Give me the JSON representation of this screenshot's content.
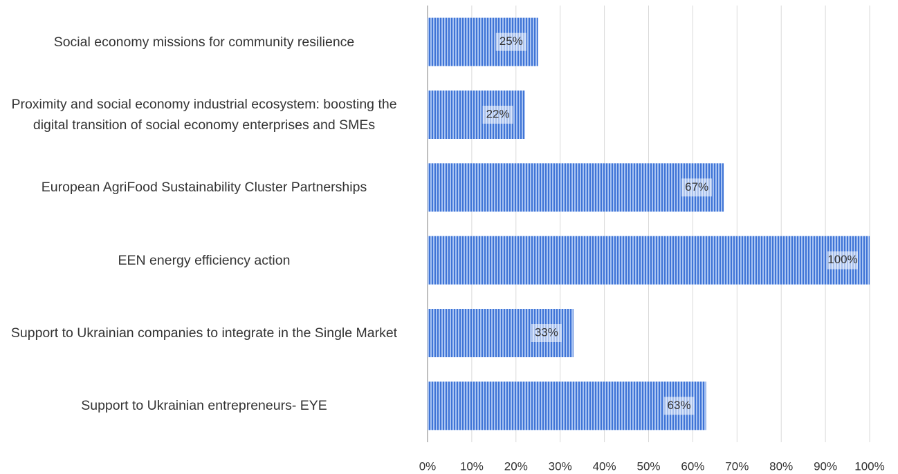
{
  "chart_data": {
    "type": "bar",
    "orientation": "horizontal",
    "categories": [
      "Social economy missions for community resilience",
      "Proximity and social economy industrial ecosystem: boosting the digital transition of social economy enterprises and SMEs",
      "European AgriFood Sustainability Cluster Partnerships",
      "EEN energy efficiency action",
      "Support to Ukrainian companies to integrate in the Single Market",
      "Support to Ukrainian entrepreneurs- EYE"
    ],
    "values": [
      25,
      22,
      67,
      100,
      33,
      63
    ],
    "value_labels": [
      "25%",
      "22%",
      "67%",
      "100%",
      "33%",
      "63%"
    ],
    "color": "#4a7fdc",
    "xlim": [
      0,
      100
    ],
    "xticks": [
      {
        "value": 0,
        "label": "0%"
      },
      {
        "value": 10,
        "label": "10%"
      },
      {
        "value": 20,
        "label": "20%"
      },
      {
        "value": 30,
        "label": "30%"
      },
      {
        "value": 40,
        "label": "40%"
      },
      {
        "value": 50,
        "label": "50%"
      },
      {
        "value": 60,
        "label": "60%"
      },
      {
        "value": 70,
        "label": "70%"
      },
      {
        "value": 80,
        "label": "80%"
      },
      {
        "value": 90,
        "label": "90%"
      },
      {
        "value": 100,
        "label": "100%"
      }
    ],
    "grid": true
  }
}
